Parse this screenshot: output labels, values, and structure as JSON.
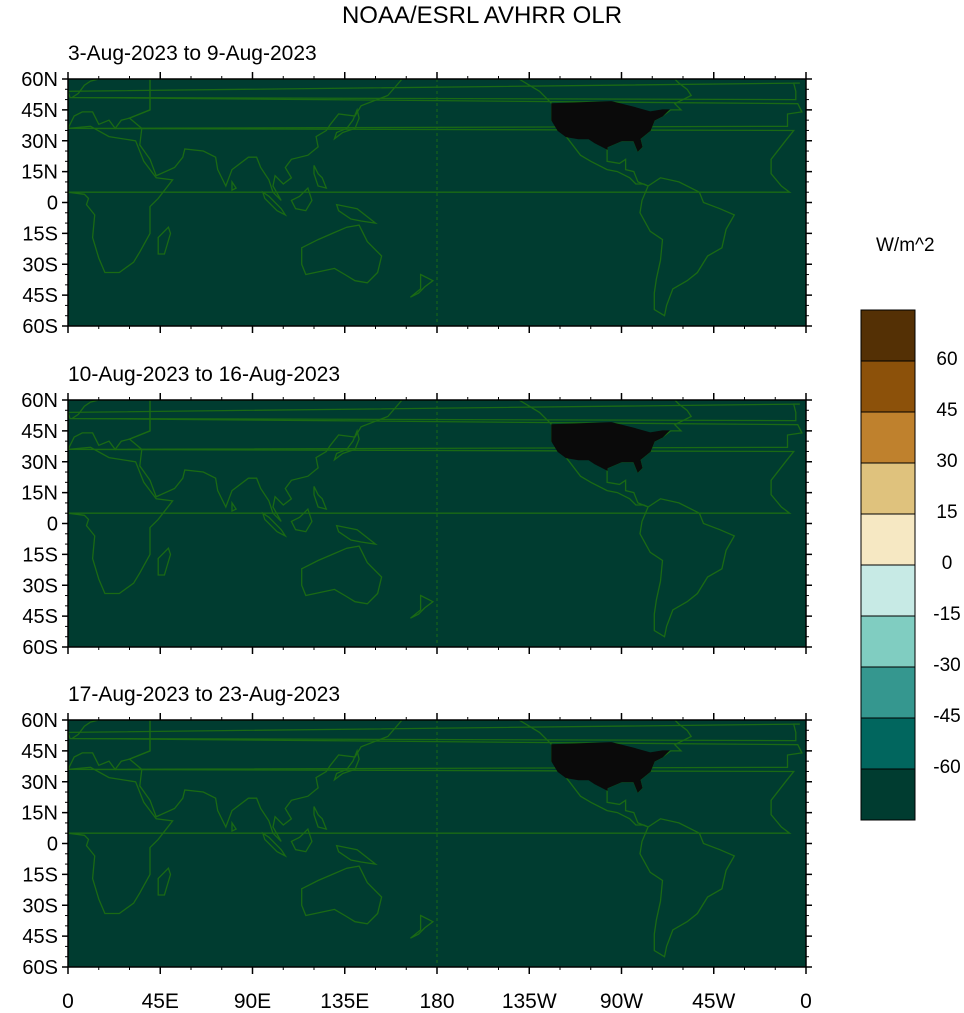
{
  "title": "NOAA/ESRL AVHRR OLR",
  "panels": [
    {
      "label": "3-Aug-2023 to 9-Aug-2023"
    },
    {
      "label": "10-Aug-2023 to 16-Aug-2023"
    },
    {
      "label": "17-Aug-2023 to 23-Aug-2023"
    }
  ],
  "lat_ticks": [
    "60N",
    "45N",
    "30N",
    "15N",
    "0",
    "15S",
    "30S",
    "45S",
    "60S"
  ],
  "lon_ticks": [
    "0",
    "45E",
    "90E",
    "135E",
    "180",
    "135W",
    "90W",
    "45W",
    "0"
  ],
  "colorbar": {
    "units": "W/m^2",
    "levels": [
      "60",
      "45",
      "30",
      "15",
      "0",
      "-15",
      "-30",
      "-45",
      "-60"
    ],
    "colors": [
      "#543005",
      "#8c510a",
      "#bf812d",
      "#dfc27d",
      "#f6e8c3",
      "#c7eae5",
      "#80cdc1",
      "#35978f",
      "#01665e",
      "#003c30"
    ]
  },
  "colors": {
    "map_fill": "#003c30",
    "coastline": "#1a6a14",
    "us_overlay": "#0a0a0a"
  }
}
